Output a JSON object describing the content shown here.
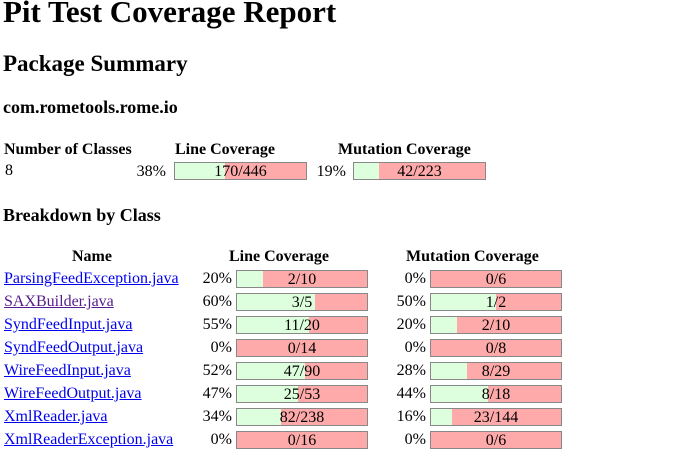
{
  "title": "Pit Test Coverage Report",
  "package_summary_heading": "Package Summary",
  "package_name": "com.rometools.rome.io",
  "summary": {
    "headers": {
      "classes": "Number of Classes",
      "line": "Line Coverage",
      "mutation": "Mutation Coverage"
    },
    "classes": "8",
    "line_pct": "38%",
    "line_label": "170/446",
    "line_fraction": 0.38,
    "mutation_pct": "19%",
    "mutation_label": "42/223",
    "mutation_fraction": 0.19
  },
  "breakdown_heading": "Breakdown by Class",
  "breakdown_headers": {
    "name": "Name",
    "line": "Line Coverage",
    "mutation": "Mutation Coverage"
  },
  "rows": [
    {
      "name": "ParsingFeedException.java",
      "visited": false,
      "line_pct": "20%",
      "line_label": "2/10",
      "line_fraction": 0.2,
      "mut_pct": "0%",
      "mut_label": "0/6",
      "mut_fraction": 0.0
    },
    {
      "name": "SAXBuilder.java",
      "visited": true,
      "line_pct": "60%",
      "line_label": "3/5",
      "line_fraction": 0.6,
      "mut_pct": "50%",
      "mut_label": "1/2",
      "mut_fraction": 0.5
    },
    {
      "name": "SyndFeedInput.java",
      "visited": false,
      "line_pct": "55%",
      "line_label": "11/20",
      "line_fraction": 0.55,
      "mut_pct": "20%",
      "mut_label": "2/10",
      "mut_fraction": 0.2
    },
    {
      "name": "SyndFeedOutput.java",
      "visited": false,
      "line_pct": "0%",
      "line_label": "0/14",
      "line_fraction": 0.0,
      "mut_pct": "0%",
      "mut_label": "0/8",
      "mut_fraction": 0.0
    },
    {
      "name": "WireFeedInput.java",
      "visited": false,
      "line_pct": "52%",
      "line_label": "47/90",
      "line_fraction": 0.52,
      "mut_pct": "28%",
      "mut_label": "8/29",
      "mut_fraction": 0.28
    },
    {
      "name": "WireFeedOutput.java",
      "visited": false,
      "line_pct": "47%",
      "line_label": "25/53",
      "line_fraction": 0.47,
      "mut_pct": "44%",
      "mut_label": "8/18",
      "mut_fraction": 0.44
    },
    {
      "name": "XmlReader.java",
      "visited": false,
      "line_pct": "34%",
      "line_label": "82/238",
      "line_fraction": 0.34,
      "mut_pct": "16%",
      "mut_label": "23/144",
      "mut_fraction": 0.16
    },
    {
      "name": "XmlReaderException.java",
      "visited": false,
      "line_pct": "0%",
      "line_label": "0/16",
      "line_fraction": 0.0,
      "mut_pct": "0%",
      "mut_label": "0/6",
      "mut_fraction": 0.0
    }
  ],
  "colors": {
    "covered": "#ddffdd",
    "uncovered": "#ffaaaa",
    "link": "#0000ee",
    "visited_link": "#551a8b"
  }
}
